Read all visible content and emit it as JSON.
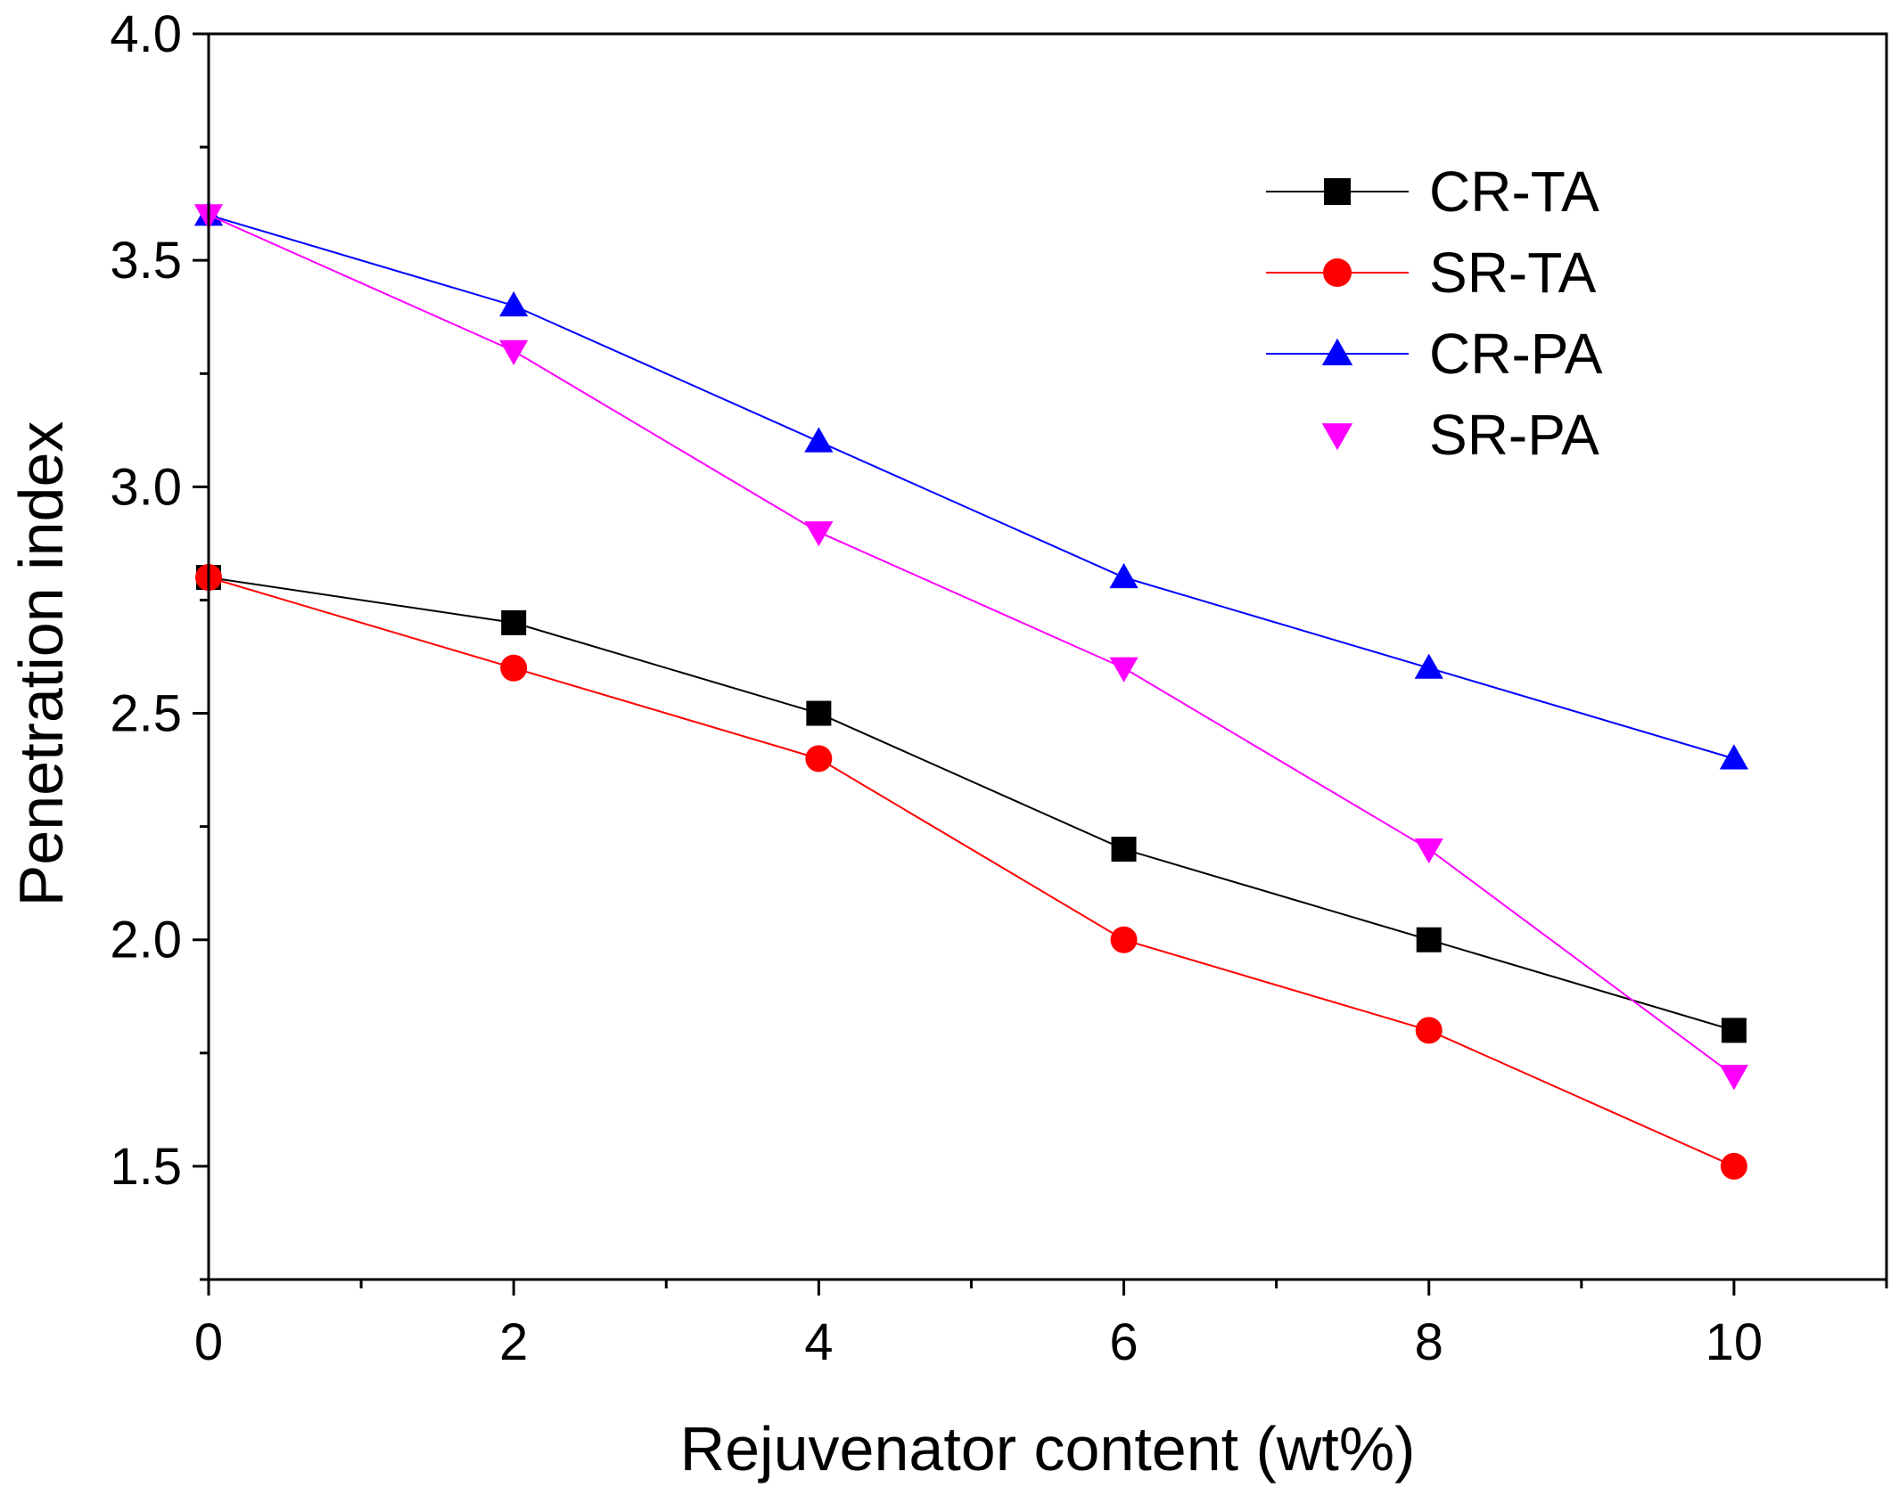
{
  "chart_data": {
    "type": "line",
    "xlabel": "Rejuvenator content (wt%)",
    "ylabel": "Penetration index",
    "xlim": [
      0,
      11
    ],
    "ylim": [
      1.25,
      4.0
    ],
    "x_major_ticks": [
      0,
      2,
      4,
      6,
      8,
      10
    ],
    "x_minor_ticks": [
      1,
      3,
      5,
      7,
      9,
      11
    ],
    "y_major_ticks": [
      1.5,
      2.0,
      2.5,
      3.0,
      3.5,
      4.0
    ],
    "y_minor_ticks": [
      1.25,
      1.75,
      2.25,
      2.75,
      3.25,
      3.75
    ],
    "x_tick_labels": [
      "0",
      "2",
      "4",
      "6",
      "8",
      "10"
    ],
    "y_tick_labels": [
      "1.5",
      "2.0",
      "2.5",
      "3.0",
      "3.5",
      "4.0"
    ],
    "legend_position": "top-right",
    "grid": false,
    "x": [
      0,
      2,
      4,
      6,
      8,
      10
    ],
    "series": [
      {
        "name": "CR-TA",
        "values": [
          2.8,
          2.7,
          2.5,
          2.2,
          2.0,
          1.8
        ],
        "color": "#000000",
        "marker": "square"
      },
      {
        "name": "SR-TA",
        "values": [
          2.8,
          2.6,
          2.4,
          2.0,
          1.8,
          1.5
        ],
        "color": "#ff0000",
        "marker": "circle"
      },
      {
        "name": "CR-PA",
        "values": [
          3.6,
          3.4,
          3.1,
          2.8,
          2.6,
          2.4
        ],
        "color": "#0000ff",
        "marker": "triangle-up"
      },
      {
        "name": "SR-PA",
        "values": [
          3.6,
          3.3,
          2.9,
          2.6,
          2.2,
          1.7
        ],
        "color": "#ff00ff",
        "marker": "triangle-down"
      }
    ]
  }
}
